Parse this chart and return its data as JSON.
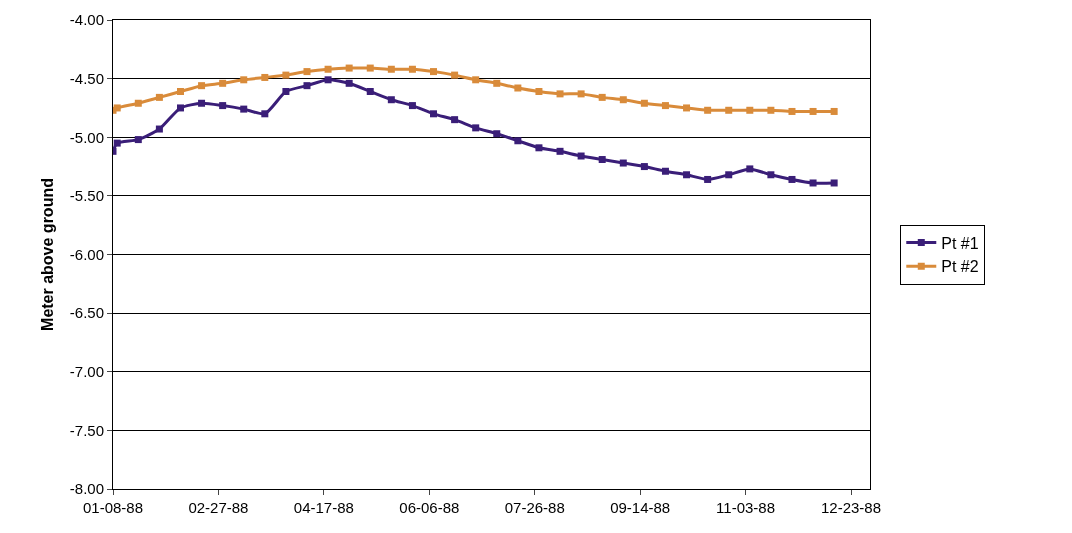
{
  "chart_data": {
    "type": "line",
    "ylabel": "Meter above ground",
    "x": [
      "1988-01-08",
      "1988-01-10",
      "1988-01-20",
      "1988-01-30",
      "1988-02-09",
      "1988-02-19",
      "1988-02-29",
      "1988-03-10",
      "1988-03-20",
      "1988-03-30",
      "1988-04-09",
      "1988-04-19",
      "1988-04-29",
      "1988-05-09",
      "1988-05-19",
      "1988-05-29",
      "1988-06-08",
      "1988-06-18",
      "1988-06-28",
      "1988-07-08",
      "1988-07-18",
      "1988-07-28",
      "1988-08-07",
      "1988-08-17",
      "1988-08-27",
      "1988-09-06",
      "1988-09-16",
      "1988-09-26",
      "1988-10-06",
      "1988-10-16",
      "1988-10-26",
      "1988-11-05",
      "1988-11-15",
      "1988-11-25",
      "1988-12-05",
      "1988-12-15"
    ],
    "series": [
      {
        "name": "Pt #1",
        "color": "#3a1e78",
        "values": [
          -5.12,
          -5.05,
          -5.02,
          -4.93,
          -4.75,
          -4.71,
          -4.73,
          -4.76,
          -4.8,
          -4.61,
          -4.56,
          -4.51,
          -4.54,
          -4.61,
          -4.68,
          -4.73,
          -4.8,
          -4.85,
          -4.92,
          -4.97,
          -5.03,
          -5.09,
          -5.12,
          -5.16,
          -5.19,
          -5.22,
          -5.25,
          -5.29,
          -5.32,
          -5.36,
          -5.32,
          -5.27,
          -5.32,
          -5.36,
          -5.39,
          -5.39
        ]
      },
      {
        "name": "Pt #2",
        "color": "#d98b3a",
        "values": [
          -4.77,
          -4.75,
          -4.71,
          -4.66,
          -4.61,
          -4.56,
          -4.54,
          -4.51,
          -4.49,
          -4.47,
          -4.44,
          -4.42,
          -4.41,
          -4.41,
          -4.42,
          -4.42,
          -4.44,
          -4.47,
          -4.51,
          -4.54,
          -4.58,
          -4.61,
          -4.63,
          -4.63,
          -4.66,
          -4.68,
          -4.71,
          -4.73,
          -4.75,
          -4.77,
          -4.77,
          -4.77,
          -4.77,
          -4.78,
          -4.78,
          -4.78
        ]
      }
    ],
    "xlim": [
      "1988-01-08",
      "1989-01-01"
    ],
    "xticks": [
      {
        "value": "1988-01-08",
        "label": "01-08-88"
      },
      {
        "value": "1988-02-27",
        "label": "02-27-88"
      },
      {
        "value": "1988-04-17",
        "label": "04-17-88"
      },
      {
        "value": "1988-06-06",
        "label": "06-06-88"
      },
      {
        "value": "1988-07-26",
        "label": "07-26-88"
      },
      {
        "value": "1988-09-14",
        "label": "09-14-88"
      },
      {
        "value": "1988-11-03",
        "label": "11-03-88"
      },
      {
        "value": "1988-12-23",
        "label": "12-23-88"
      }
    ],
    "ylim": [
      -8,
      -4
    ],
    "yticks": [
      {
        "value": -8,
        "label": "-8.00"
      },
      {
        "value": -7.5,
        "label": "-7.50"
      },
      {
        "value": -7,
        "label": "-7.00"
      },
      {
        "value": -6.5,
        "label": "-6.50"
      },
      {
        "value": -6,
        "label": "-6.00"
      },
      {
        "value": -5.5,
        "label": "-5.50"
      },
      {
        "value": -5,
        "label": "-5.00"
      },
      {
        "value": -4.5,
        "label": "-4.50"
      },
      {
        "value": -4,
        "label": "-4.00"
      }
    ],
    "grid": "y",
    "legend": "right",
    "marker": "square",
    "line_style": "solid"
  }
}
